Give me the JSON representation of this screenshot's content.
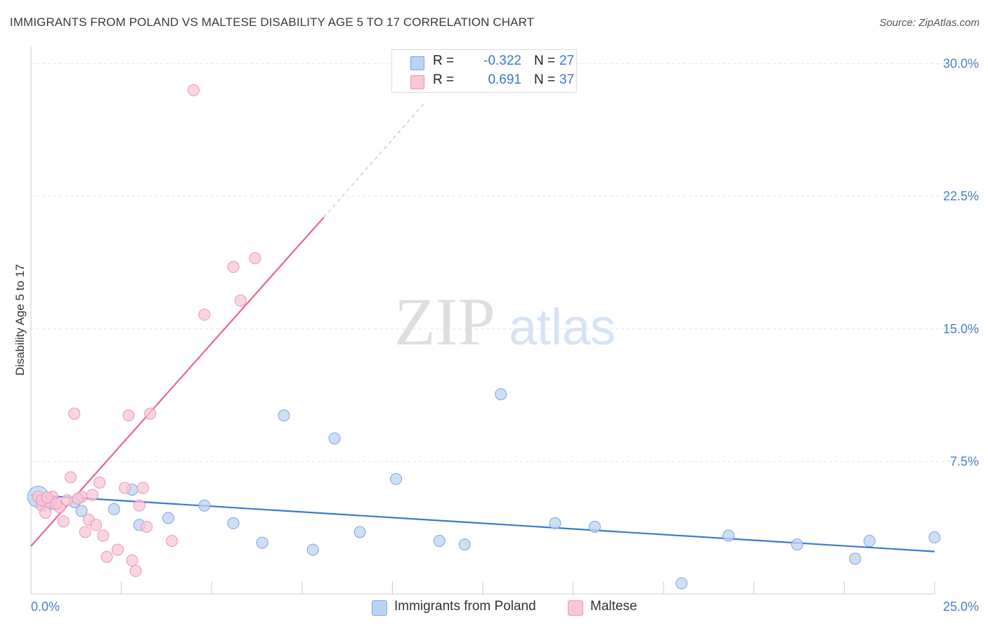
{
  "title": "IMMIGRANTS FROM POLAND VS MALTESE DISABILITY AGE 5 TO 17 CORRELATION CHART",
  "source": "Source: ZipAtlas.com",
  "watermark": {
    "part1": "ZIP",
    "part2": "atlas"
  },
  "colors": {
    "blue": "#3a78d0",
    "blue_fill": "#bcd3f2",
    "pink": "#e8649a",
    "pink_fill": "#f9c6d8",
    "tick": "#4a7fc9",
    "grid": "#e3e3e3"
  },
  "legend": {
    "rows": [
      {
        "r_label": "R =",
        "r_value": "-0.322",
        "n_label": "N =",
        "n_value": "27"
      },
      {
        "r_label": "R =",
        "r_value": "0.691",
        "n_label": "N =",
        "n_value": "37"
      }
    ]
  },
  "bottom_legend": [
    "Immigrants from Poland",
    "Maltese"
  ],
  "chart_data": {
    "type": "scatter",
    "title": "IMMIGRANTS FROM POLAND VS MALTESE DISABILITY AGE 5 TO 17 CORRELATION CHART",
    "xlabel": "",
    "ylabel": "Disability Age 5 to 17",
    "xlim": [
      0,
      25
    ],
    "ylim": [
      0,
      30.5
    ],
    "x_tick_labels": [
      "0.0%",
      "25.0%"
    ],
    "y_ticks": [
      7.5,
      15.0,
      22.5,
      30.0
    ],
    "y_tick_labels": [
      "7.5%",
      "15.0%",
      "22.5%",
      "30.0%"
    ],
    "grid": true,
    "legend_position": "top-center",
    "series": [
      {
        "name": "Immigrants from Poland",
        "color": "#3a78d0",
        "r": -0.322,
        "n": 27,
        "trend": {
          "x": [
            0,
            25
          ],
          "y": [
            5.6,
            2.4
          ],
          "dashed_from_x": null
        },
        "points": [
          [
            0.2,
            5.5
          ],
          [
            1.2,
            5.2
          ],
          [
            2.3,
            4.8
          ],
          [
            2.8,
            5.9
          ],
          [
            0.6,
            5.1
          ],
          [
            1.4,
            4.7
          ],
          [
            3.0,
            3.9
          ],
          [
            3.8,
            4.3
          ],
          [
            4.8,
            5.0
          ],
          [
            5.6,
            4.0
          ],
          [
            6.4,
            2.9
          ],
          [
            7.0,
            10.1
          ],
          [
            7.8,
            2.5
          ],
          [
            8.4,
            8.8
          ],
          [
            9.1,
            3.5
          ],
          [
            10.1,
            6.5
          ],
          [
            11.3,
            3.0
          ],
          [
            12.0,
            2.8
          ],
          [
            13.0,
            11.3
          ],
          [
            14.5,
            4.0
          ],
          [
            15.6,
            3.8
          ],
          [
            18.0,
            0.6
          ],
          [
            19.3,
            3.3
          ],
          [
            21.2,
            2.8
          ],
          [
            22.8,
            2.0
          ],
          [
            23.2,
            3.0
          ],
          [
            25.0,
            3.2
          ]
        ]
      },
      {
        "name": "Maltese",
        "color": "#e8649a",
        "r": 0.691,
        "n": 37,
        "trend": {
          "x": [
            0,
            8.1
          ],
          "y": [
            2.7,
            21.3
          ],
          "dashed_to": [
            10.9,
            27.8
          ]
        },
        "points": [
          [
            0.2,
            5.5
          ],
          [
            0.3,
            5.0
          ],
          [
            0.4,
            4.6
          ],
          [
            0.5,
            5.2
          ],
          [
            0.6,
            5.5
          ],
          [
            0.8,
            4.9
          ],
          [
            0.9,
            4.1
          ],
          [
            1.0,
            5.3
          ],
          [
            1.1,
            6.6
          ],
          [
            1.2,
            10.2
          ],
          [
            1.4,
            5.5
          ],
          [
            1.5,
            3.5
          ],
          [
            1.6,
            4.2
          ],
          [
            1.7,
            5.6
          ],
          [
            1.8,
            3.9
          ],
          [
            1.9,
            6.3
          ],
          [
            2.0,
            3.3
          ],
          [
            2.1,
            2.1
          ],
          [
            2.4,
            2.5
          ],
          [
            2.6,
            6.0
          ],
          [
            2.7,
            10.1
          ],
          [
            2.8,
            1.9
          ],
          [
            2.9,
            1.3
          ],
          [
            3.0,
            5.0
          ],
          [
            3.1,
            6.0
          ],
          [
            3.2,
            3.8
          ],
          [
            3.3,
            10.2
          ],
          [
            3.9,
            3.0
          ],
          [
            4.5,
            28.5
          ],
          [
            4.8,
            15.8
          ],
          [
            5.6,
            18.5
          ],
          [
            5.8,
            16.6
          ],
          [
            6.2,
            19.0
          ],
          [
            0.3,
            5.3
          ],
          [
            0.7,
            5.1
          ],
          [
            1.3,
            5.4
          ],
          [
            0.45,
            5.45
          ]
        ]
      }
    ]
  }
}
